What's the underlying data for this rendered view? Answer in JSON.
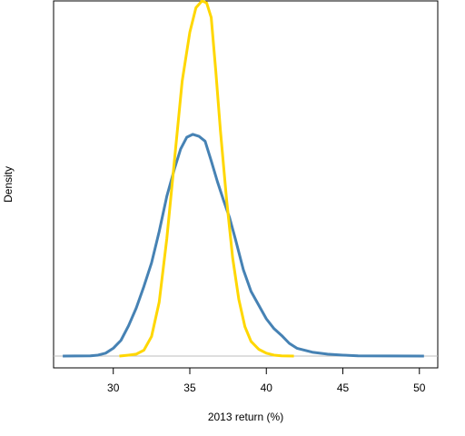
{
  "chart_data": {
    "type": "line",
    "title": "",
    "xlabel": "2013 return (%)",
    "ylabel": "Density",
    "xlim": [
      26.1,
      51.2
    ],
    "ylim": [
      -0.012,
      0.362
    ],
    "x_ticks": [
      30,
      35,
      40,
      45,
      50
    ],
    "x_tick_labels": [
      "30",
      "35",
      "40",
      "45",
      "50"
    ],
    "y_ticks": [],
    "grid": false,
    "legend": "none",
    "baseline": 0,
    "series": [
      {
        "color": "#4682b4",
        "x": [
          26.7,
          27.5,
          28.5,
          29.0,
          29.5,
          30.0,
          30.5,
          31.0,
          31.5,
          32.0,
          32.5,
          33.0,
          33.5,
          34.0,
          34.4,
          34.8,
          35.2,
          35.6,
          36.0,
          36.4,
          36.8,
          37.2,
          37.6,
          38.0,
          38.5,
          39.0,
          39.5,
          40.0,
          40.5,
          41.0,
          41.5,
          42.0,
          43.0,
          44.0,
          45.0,
          46.0,
          48.0,
          50.3
        ],
        "y": [
          0.0,
          0.0001,
          0.0003,
          0.001,
          0.003,
          0.008,
          0.016,
          0.031,
          0.049,
          0.071,
          0.095,
          0.127,
          0.163,
          0.191,
          0.211,
          0.223,
          0.226,
          0.224,
          0.219,
          0.199,
          0.178,
          0.159,
          0.141,
          0.118,
          0.088,
          0.066,
          0.052,
          0.038,
          0.028,
          0.021,
          0.013,
          0.008,
          0.004,
          0.002,
          0.001,
          0.0003,
          0.0001,
          0.0
        ]
      },
      {
        "color": "#ffd700",
        "x": [
          30.4,
          31.0,
          31.5,
          32.0,
          32.5,
          33.0,
          33.5,
          34.0,
          34.5,
          35.0,
          35.4,
          35.8,
          36.1,
          36.4,
          36.7,
          37.0,
          37.4,
          37.8,
          38.2,
          38.6,
          39.0,
          39.5,
          40.0,
          40.5,
          41.0,
          41.8
        ],
        "y": [
          0.0,
          0.001,
          0.002,
          0.006,
          0.02,
          0.055,
          0.12,
          0.2,
          0.28,
          0.33,
          0.355,
          0.362,
          0.36,
          0.345,
          0.29,
          0.23,
          0.16,
          0.1,
          0.058,
          0.03,
          0.015,
          0.007,
          0.003,
          0.001,
          0.0003,
          0.0
        ]
      }
    ]
  }
}
